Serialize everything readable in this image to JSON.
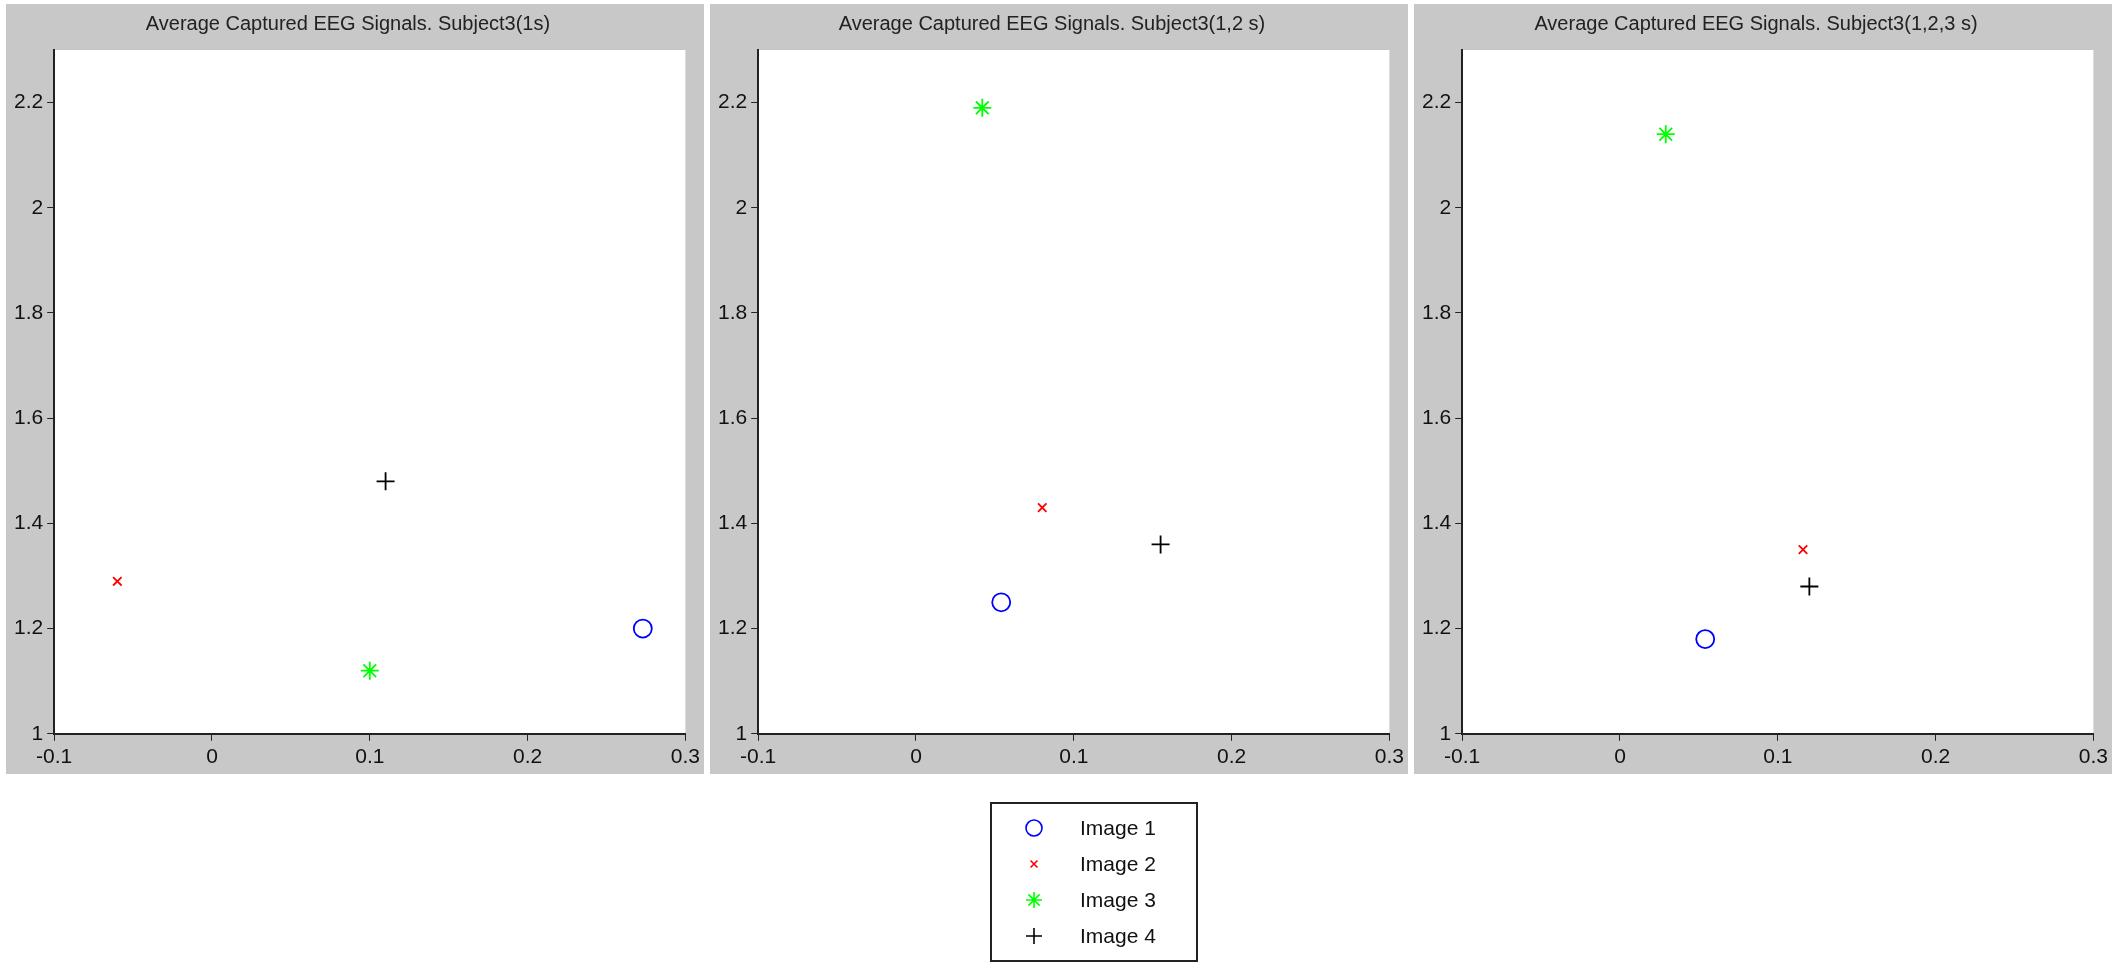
{
  "chart_data": [
    {
      "type": "scatter",
      "title": "Average Captured EEG Signals. Subject3(1s)",
      "xlim": [
        -0.1,
        0.3
      ],
      "xticks": [
        -0.1,
        0,
        0.1,
        0.2,
        0.3
      ],
      "ylim": [
        1,
        2.3
      ],
      "yticks": [
        1,
        1.2,
        1.4,
        1.6,
        1.8,
        2,
        2.2
      ],
      "grid": false,
      "series": [
        {
          "color": "#0000ff",
          "marker": "circle",
          "x": [
            0.273
          ],
          "values": [
            1.2
          ]
        },
        {
          "color": "#ff0000",
          "marker": "x",
          "x": [
            -0.06
          ],
          "values": [
            1.29
          ]
        },
        {
          "color": "#00ff00",
          "marker": "cross",
          "x": [
            0.1
          ],
          "values": [
            1.12
          ]
        },
        {
          "color": "#000000",
          "marker": "plus",
          "x": [
            0.11
          ],
          "values": [
            1.48
          ]
        }
      ]
    },
    {
      "type": "scatter",
      "title": "Average Captured EEG Signals. Subject3(1,2 s)",
      "xlim": [
        -0.1,
        0.3
      ],
      "xticks": [
        -0.1,
        0,
        0.1,
        0.2,
        0.3
      ],
      "ylim": [
        1,
        2.3
      ],
      "yticks": [
        1,
        1.2,
        1.4,
        1.6,
        1.8,
        2,
        2.2
      ],
      "grid": false,
      "legend": "bottom",
      "series": [
        {
          "name": "Image 1",
          "color": "#0000ff",
          "marker": "circle",
          "x": [
            0.054
          ],
          "values": [
            1.25
          ]
        },
        {
          "name": "Image 2",
          "color": "#ff0000",
          "marker": "x",
          "x": [
            0.08
          ],
          "values": [
            1.43
          ]
        },
        {
          "name": "Image 3",
          "color": "#00ff00",
          "marker": "cross",
          "x": [
            0.042
          ],
          "values": [
            2.19
          ]
        },
        {
          "name": "Image 4",
          "color": "#000000",
          "marker": "plus",
          "x": [
            0.155
          ],
          "values": [
            1.36
          ]
        }
      ]
    },
    {
      "type": "scatter",
      "title": "Average Captured EEG Signals. Subject3(1,2,3 s)",
      "xlim": [
        -0.1,
        0.3
      ],
      "xticks": [
        -0.1,
        0,
        0.1,
        0.2,
        0.3
      ],
      "ylim": [
        1,
        2.3
      ],
      "yticks": [
        1,
        1.2,
        1.4,
        1.6,
        1.8,
        2,
        2.2
      ],
      "grid": false,
      "series": [
        {
          "color": "#0000ff",
          "marker": "circle",
          "x": [
            0.054
          ],
          "values": [
            1.18
          ]
        },
        {
          "color": "#ff0000",
          "marker": "x",
          "x": [
            0.116
          ],
          "values": [
            1.35
          ]
        },
        {
          "color": "#00ff00",
          "marker": "cross",
          "x": [
            0.029
          ],
          "values": [
            2.14
          ]
        },
        {
          "color": "#000000",
          "marker": "plus",
          "x": [
            0.12
          ],
          "values": [
            1.28
          ]
        }
      ]
    }
  ]
}
